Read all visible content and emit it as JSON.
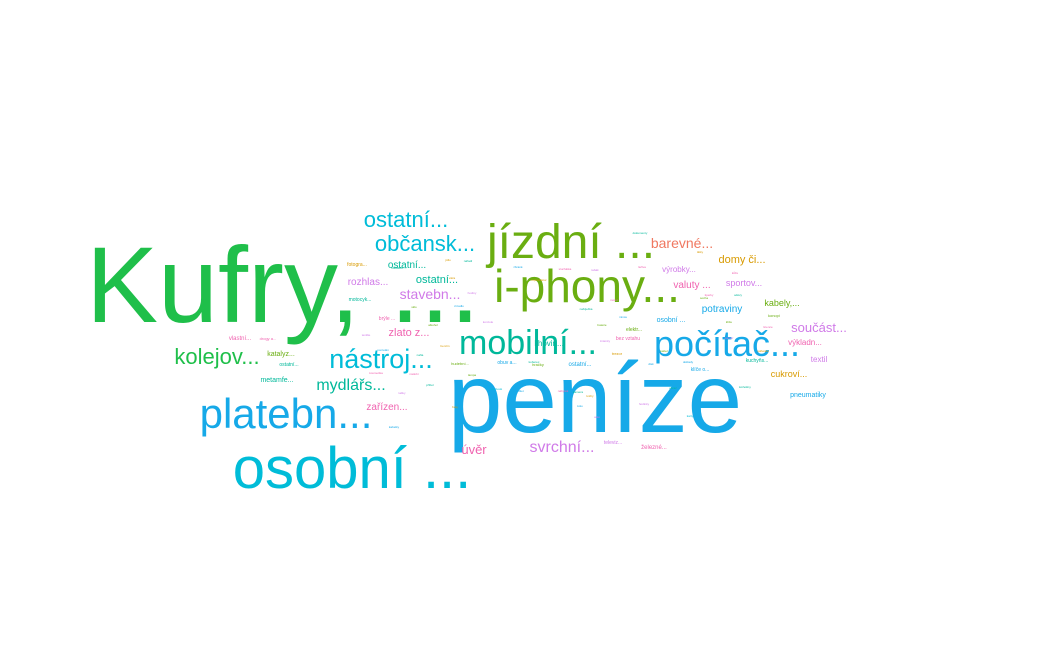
{
  "colors": {
    "green": "#1FBF4A",
    "olive": "#6AAE11",
    "cyan": "#00BCD8",
    "sky": "#16A9E8",
    "salmon": "#F07860",
    "orange": "#D89A00",
    "violet": "#D07AE8",
    "pink": "#F063B0",
    "teal": "#00B89A"
  },
  "words": [
    {
      "text": "Kufry, ...",
      "color": "green"
    },
    {
      "text": "peníze",
      "color": "sky"
    },
    {
      "text": "jízdní ...",
      "color": "olive"
    },
    {
      "text": "i-phony...",
      "color": "olive"
    },
    {
      "text": "osobní ...",
      "color": "cyan"
    },
    {
      "text": "platebn...",
      "color": "sky"
    },
    {
      "text": "mobilní...",
      "color": "teal"
    },
    {
      "text": "počítač...",
      "color": "sky"
    },
    {
      "text": "nástroj...",
      "color": "cyan"
    },
    {
      "text": "kolejov...",
      "color": "green"
    },
    {
      "text": "ostatní...",
      "color": "cyan"
    },
    {
      "text": "občansk...",
      "color": "cyan"
    },
    {
      "text": "mydlářs...",
      "color": "teal"
    },
    {
      "text": "barevné...",
      "color": "salmon"
    },
    {
      "text": "svrchní...",
      "color": "violet"
    },
    {
      "text": "domy či...",
      "color": "orange"
    },
    {
      "text": "součást...",
      "color": "violet"
    },
    {
      "text": "stavebn...",
      "color": "violet"
    },
    {
      "text": "úvěr",
      "color": "pink"
    },
    {
      "text": "zlato z...",
      "color": "pink"
    },
    {
      "text": "ostatní...",
      "color": "teal"
    },
    {
      "text": "ostatní...",
      "color": "teal"
    },
    {
      "text": "rozhlas...",
      "color": "violet"
    },
    {
      "text": "zařízen...",
      "color": "pink"
    },
    {
      "text": "potraviny",
      "color": "sky"
    },
    {
      "text": "valuty ...",
      "color": "pink"
    },
    {
      "text": "sportov...",
      "color": "violet"
    },
    {
      "text": "kabely,...",
      "color": "olive"
    },
    {
      "text": "výrobky...",
      "color": "violet"
    },
    {
      "text": "cukroví...",
      "color": "orange"
    },
    {
      "text": "výkladn...",
      "color": "pink"
    },
    {
      "text": "textil",
      "color": "violet"
    },
    {
      "text": "pneumatiky",
      "color": "sky"
    },
    {
      "text": "lihovin...",
      "color": "teal"
    },
    {
      "text": "osobní ...",
      "color": "sky"
    },
    {
      "text": "ostatní...",
      "color": "sky"
    },
    {
      "text": "obuv a...",
      "color": "sky"
    },
    {
      "text": "metamfe...",
      "color": "teal"
    },
    {
      "text": "katalyz...",
      "color": "olive"
    },
    {
      "text": "vlastní...",
      "color": "pink"
    },
    {
      "text": "motocyk...",
      "color": "teal"
    },
    {
      "text": "fotogra...",
      "color": "orange"
    },
    {
      "text": "brýle ...",
      "color": "pink"
    },
    {
      "text": "elektr...",
      "color": "olive"
    },
    {
      "text": "bez vztahu",
      "color": "pink"
    },
    {
      "text": "klíče o...",
      "color": "sky"
    },
    {
      "text": "kuchyňs...",
      "color": "teal"
    },
    {
      "text": "televiz...",
      "color": "violet"
    },
    {
      "text": "železné...",
      "color": "pink"
    },
    {
      "text": "ostatní...",
      "color": "teal"
    },
    {
      "text": "hudební...",
      "color": "olive"
    },
    {
      "text": "trezor",
      "color": "orange"
    },
    {
      "text": "ostatní...",
      "color": "teal"
    },
    {
      "text": "hračky",
      "color": "olive"
    },
    {
      "text": "konopí",
      "color": "olive"
    },
    {
      "text": "drogy a...",
      "color": "pink"
    },
    {
      "text": "dokumenty",
      "color": "teal"
    },
    {
      "text": "doklady",
      "color": "sky"
    },
    {
      "text": "léčiva",
      "color": "pink"
    },
    {
      "text": "tabák",
      "color": "violet"
    },
    {
      "text": "zbraně",
      "color": "sky"
    },
    {
      "text": "nářadí",
      "color": "teal"
    },
    {
      "text": "jídlo",
      "color": "orange"
    },
    {
      "text": "hodinky",
      "color": "violet"
    },
    {
      "text": "šperky",
      "color": "pink"
    },
    {
      "text": "oděvy",
      "color": "teal"
    },
    {
      "text": "karty",
      "color": "cyan"
    },
    {
      "text": "klíče",
      "color": "olive"
    },
    {
      "text": "boty",
      "color": "orange"
    },
    {
      "text": "tašky",
      "color": "violet"
    },
    {
      "text": "kabelky",
      "color": "sky"
    },
    {
      "text": "kosmetika",
      "color": "pink"
    },
    {
      "text": "alkohol",
      "color": "olive"
    },
    {
      "text": "benzín",
      "color": "orange"
    },
    {
      "text": "nafta",
      "color": "teal"
    },
    {
      "text": "kolo",
      "color": "sky"
    },
    {
      "text": "auto",
      "color": "violet"
    },
    {
      "text": "motor",
      "color": "pink"
    },
    {
      "text": "baterie",
      "color": "olive"
    },
    {
      "text": "kamera",
      "color": "teal"
    },
    {
      "text": "tablet",
      "color": "sky"
    },
    {
      "text": "notebook",
      "color": "cyan"
    },
    {
      "text": "konzole",
      "color": "violet"
    },
    {
      "text": "reproduktor",
      "color": "orange"
    },
    {
      "text": "sluchátka",
      "color": "pink"
    },
    {
      "text": "nabíječka",
      "color": "teal"
    },
    {
      "text": "kabel",
      "color": "olive"
    },
    {
      "text": "disk",
      "color": "sky"
    },
    {
      "text": "paměť",
      "color": "violet"
    },
    {
      "text": "software",
      "color": "orange"
    },
    {
      "text": "licence",
      "color": "pink"
    },
    {
      "text": "obraz",
      "color": "teal"
    },
    {
      "text": "socha",
      "color": "olive"
    },
    {
      "text": "mince",
      "color": "sky"
    },
    {
      "text": "známky",
      "color": "violet"
    },
    {
      "text": "knihy",
      "color": "orange"
    },
    {
      "text": "nábytek",
      "color": "pink"
    },
    {
      "text": "koberec",
      "color": "teal"
    },
    {
      "text": "lampa",
      "color": "olive"
    },
    {
      "text": "zrcadlo",
      "color": "sky"
    },
    {
      "text": "hodiny",
      "color": "violet"
    },
    {
      "text": "váza",
      "color": "orange"
    },
    {
      "text": "nádobí",
      "color": "pink"
    },
    {
      "text": "příbor",
      "color": "teal"
    },
    {
      "text": "sklo",
      "color": "olive"
    },
    {
      "text": "porcelán",
      "color": "sky"
    },
    {
      "text": "textilie",
      "color": "violet"
    },
    {
      "text": "látky",
      "color": "orange"
    },
    {
      "text": "kůže",
      "color": "pink"
    },
    {
      "text": "kožešiny",
      "color": "teal"
    }
  ]
}
